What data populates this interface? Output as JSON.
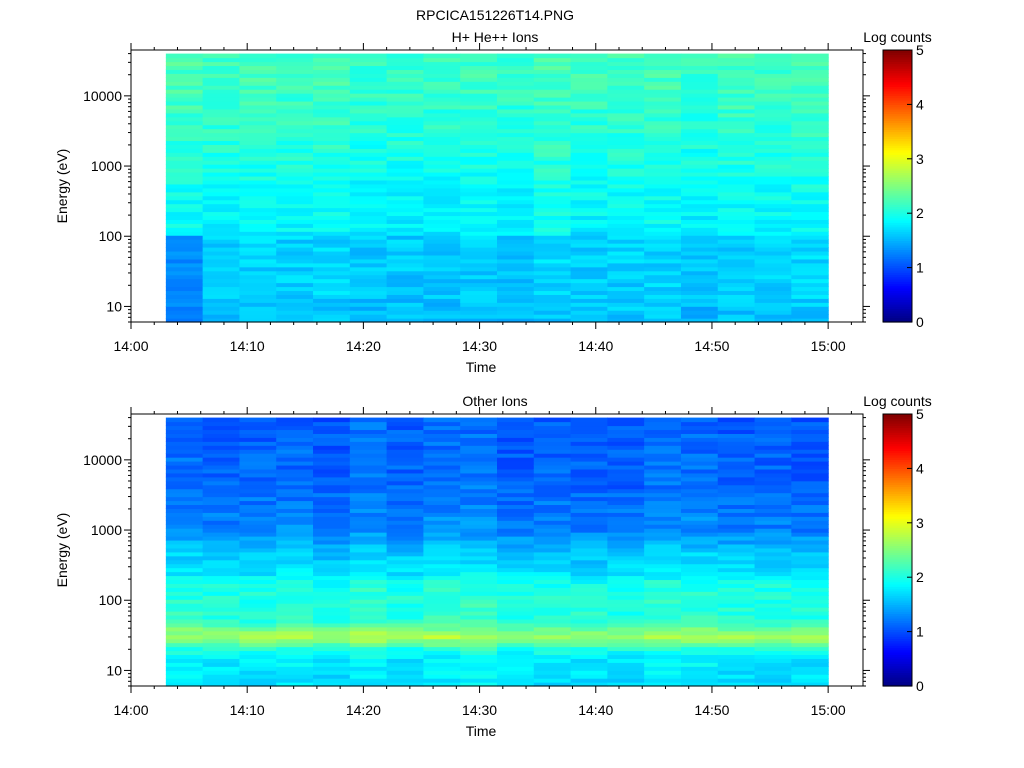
{
  "figure": {
    "title": "RPCICA151226T14.PNG"
  },
  "chart_data": [
    {
      "type": "heatmap",
      "title": "H+ He++ Ions",
      "xlabel": "Time",
      "ylabel": "Energy (eV)",
      "x_range": [
        "14:00",
        "15:03"
      ],
      "x_ticks": [
        "14:00",
        "14:10",
        "14:20",
        "14:30",
        "14:40",
        "14:50",
        "15:00"
      ],
      "y_scale": "log",
      "y_range": [
        6,
        45000
      ],
      "y_ticks": [
        "10",
        "100",
        "1000",
        "10000"
      ],
      "data_time_range": [
        "14:03",
        "15:00"
      ],
      "data_energy_range": [
        6,
        40000
      ],
      "time_bins": 18,
      "colorbar": {
        "label": "Log counts",
        "range": [
          0,
          5
        ],
        "ticks": [
          "0",
          "1",
          "2",
          "3",
          "4",
          "5"
        ]
      },
      "profile": [
        {
          "energy": 6,
          "log_counts": 1.55
        },
        {
          "energy": 10,
          "log_counts": 1.6
        },
        {
          "energy": 30,
          "log_counts": 1.65
        },
        {
          "energy": 95,
          "log_counts": 1.65
        },
        {
          "energy": 120,
          "log_counts": 1.85
        },
        {
          "energy": 400,
          "log_counts": 1.9
        },
        {
          "energy": 2000,
          "log_counts": 2.05
        },
        {
          "energy": 10000,
          "log_counts": 2.15
        },
        {
          "energy": 40000,
          "log_counts": 2.2
        }
      ],
      "features": [
        {
          "time_start": "14:03",
          "time_end": "14:09",
          "energy_min": 6,
          "energy_max": 110,
          "log_counts": 1.3
        },
        {
          "time_start": "14:06",
          "time_end": "14:09",
          "energy_min": 6,
          "energy_max": 8,
          "log_counts": 1.05
        }
      ]
    },
    {
      "type": "heatmap",
      "title": "Other Ions",
      "xlabel": "Time",
      "ylabel": "Energy (eV)",
      "x_range": [
        "14:00",
        "15:03"
      ],
      "x_ticks": [
        "14:00",
        "14:10",
        "14:20",
        "14:30",
        "14:40",
        "14:50",
        "15:00"
      ],
      "y_scale": "log",
      "y_range": [
        6,
        45000
      ],
      "y_ticks": [
        "10",
        "100",
        "1000",
        "10000"
      ],
      "data_time_range": [
        "14:03",
        "15:00"
      ],
      "data_energy_range": [
        6,
        40000
      ],
      "time_bins": 18,
      "colorbar": {
        "label": "Log counts",
        "range": [
          0,
          5
        ],
        "ticks": [
          "0",
          "1",
          "2",
          "3",
          "4",
          "5"
        ]
      },
      "profile": [
        {
          "energy": 6,
          "log_counts": 1.75
        },
        {
          "energy": 15,
          "log_counts": 1.8
        },
        {
          "energy": 20,
          "log_counts": 2.0
        },
        {
          "energy": 25,
          "log_counts": 2.45
        },
        {
          "energy": 30,
          "log_counts": 2.7
        },
        {
          "energy": 38,
          "log_counts": 2.45
        },
        {
          "energy": 50,
          "log_counts": 2.1
        },
        {
          "energy": 100,
          "log_counts": 2.05
        },
        {
          "energy": 180,
          "log_counts": 2.0
        },
        {
          "energy": 220,
          "log_counts": 1.8
        },
        {
          "energy": 500,
          "log_counts": 1.6
        },
        {
          "energy": 1000,
          "log_counts": 1.3
        },
        {
          "energy": 5000,
          "log_counts": 1.15
        },
        {
          "energy": 40000,
          "log_counts": 1.1
        }
      ],
      "features": []
    }
  ]
}
